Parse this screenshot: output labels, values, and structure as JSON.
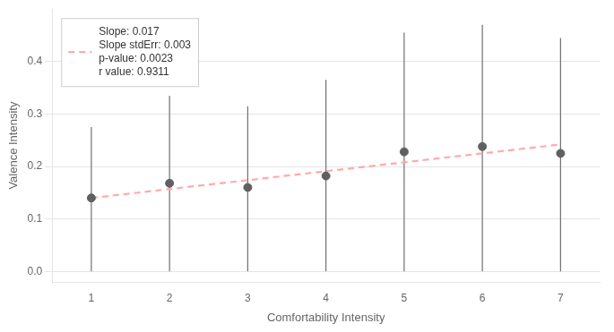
{
  "chart_data": {
    "type": "scatter",
    "xlabel": "Comfortability Intensity",
    "ylabel": "Valence Intensity",
    "xlim": [
      0.5,
      7.5
    ],
    "ylim": [
      -0.02,
      0.5
    ],
    "xticks": [
      1,
      2,
      3,
      4,
      5,
      6,
      7
    ],
    "yticks": [
      {
        "value": 0.0,
        "label": "0.0"
      },
      0.1,
      0.2,
      0.3,
      0.4
    ],
    "grid": "y",
    "legend": "upper left",
    "series": [
      {
        "type": "scatter",
        "marker": "circle",
        "color": "#606060",
        "x": [
          1,
          2,
          3,
          4,
          5,
          6,
          7
        ],
        "values": [
          0.14,
          0.168,
          0.16,
          0.182,
          0.228,
          0.238,
          0.225
        ],
        "error_upper": [
          0.275,
          0.335,
          0.315,
          0.365,
          0.455,
          0.47,
          0.445
        ],
        "error_lower": [
          0.0,
          0.0,
          0.0,
          0.0,
          0.0,
          0.0,
          0.0
        ],
        "error_color": "#707070"
      },
      {
        "type": "line",
        "line_style": "dashed",
        "color": "#ffaaaa",
        "name": "Slope: 0.017\nSlope stdErr: 0.003\np-value: 0.0023\nr value: 0.9311",
        "x": [
          1,
          7
        ],
        "values": [
          0.14,
          0.242
        ]
      }
    ]
  }
}
